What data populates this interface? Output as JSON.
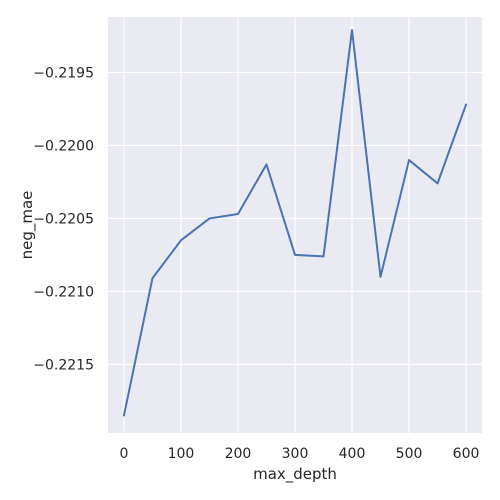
{
  "chart_data": {
    "type": "line",
    "title": "",
    "xlabel": "max_depth",
    "ylabel": "neg_mae",
    "xlim": [
      -28,
      628
    ],
    "ylim": [
      -0.22197,
      -0.21912
    ],
    "x_ticks": [
      0,
      100,
      200,
      300,
      400,
      500,
      600
    ],
    "x_tick_labels": [
      "0",
      "100",
      "200",
      "300",
      "400",
      "500",
      "600"
    ],
    "y_ticks": [
      -0.2215,
      -0.221,
      -0.2205,
      -0.22,
      -0.2195
    ],
    "y_tick_labels": [
      "−0.2215",
      "−0.2210",
      "−0.2205",
      "−0.2200",
      "−0.2195"
    ],
    "grid": true,
    "legend": "none",
    "series": [
      {
        "x": [
          0,
          50,
          100,
          150,
          200,
          250,
          300,
          350,
          400,
          450,
          500,
          550,
          600
        ],
        "y": [
          -0.22185,
          -0.22091,
          -0.22065,
          -0.2205,
          -0.22047,
          -0.22013,
          -0.22075,
          -0.22076,
          -0.21921,
          -0.2209,
          -0.2201,
          -0.22026,
          -0.21972
        ],
        "color": "#4c72b0"
      }
    ],
    "colors": {
      "plot_background": "#eaeaf2",
      "grid": "#ffffff",
      "line": "#4c72b0",
      "text": "#262626"
    }
  }
}
